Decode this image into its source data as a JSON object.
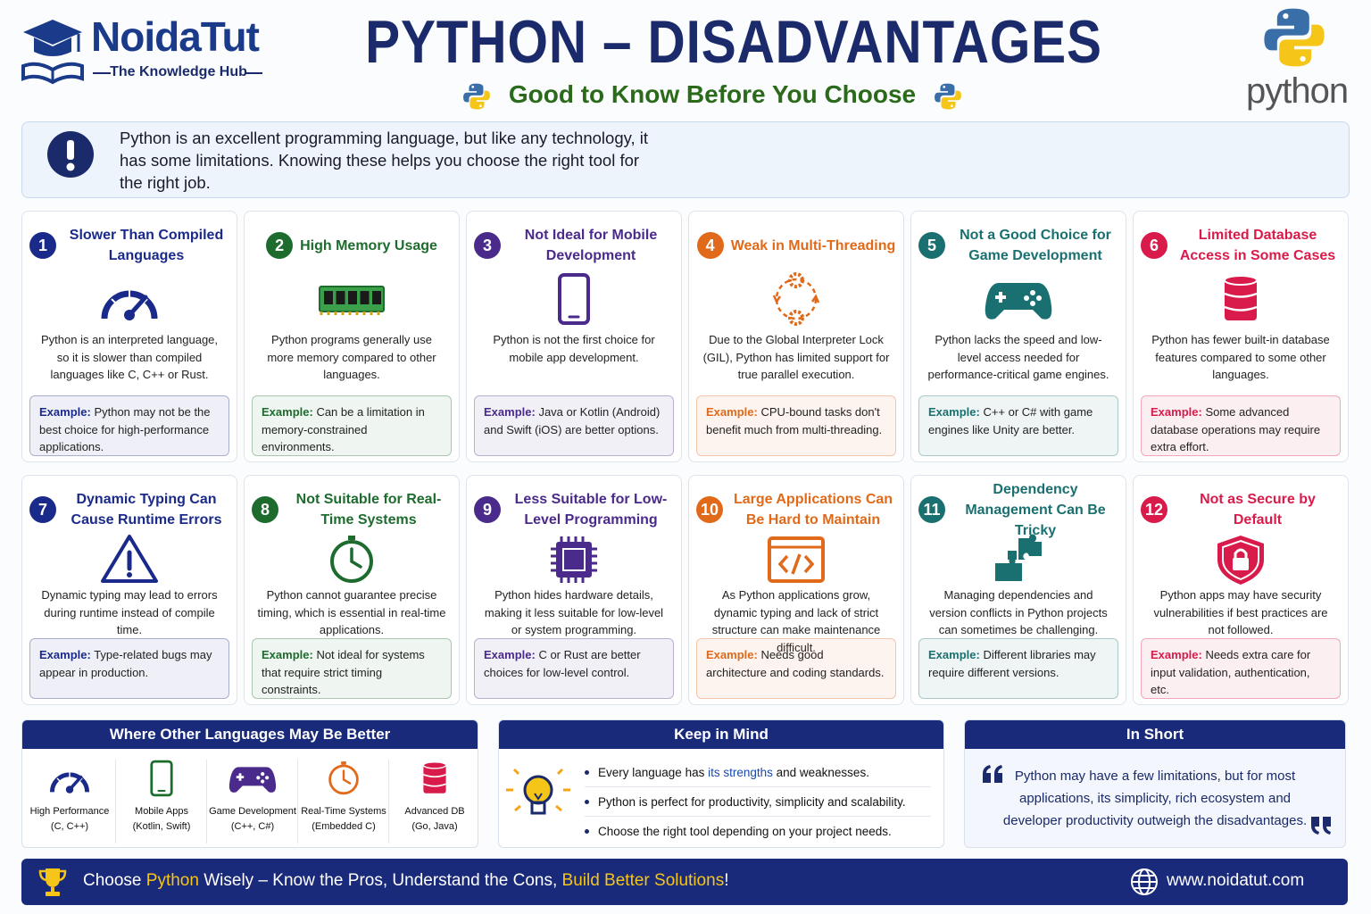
{
  "header": {
    "brand": "NoidaTut",
    "tagline": "The Knowledge Hub",
    "title": "PYTHON – DISADVANTAGES",
    "subtitle": "Good to Know Before You Choose",
    "logo_text": "python"
  },
  "intro": "Python is an excellent programming language, but like any technology, it has some limitations. Knowing these helps you choose the right tool for the right job.",
  "example_label": "Example:",
  "cards": [
    {
      "number": 1,
      "title": "Slower Than Compiled Languages",
      "description": "Python is an interpreted language, so it is slower than compiled languages like C, C++ or Rust.",
      "example": "Python may not be the best choice for high-performance applications."
    },
    {
      "number": 2,
      "title": "High Memory Usage",
      "description": "Python programs generally use more memory compared to other languages.",
      "example": "Can be a limitation in memory-constrained environments."
    },
    {
      "number": 3,
      "title": "Not Ideal for Mobile Development",
      "description": "Python is not the first choice for mobile app development.",
      "example": "Java or Kotlin (Android) and Swift (iOS) are better options."
    },
    {
      "number": 4,
      "title": "Weak in Multi-Threading",
      "description": "Due to the Global Interpreter Lock (GIL), Python has limited support for true parallel execution.",
      "example": "CPU-bound tasks don't benefit much from multi-threading."
    },
    {
      "number": 5,
      "title": "Not a Good Choice for Game Development",
      "description": "Python lacks the speed and low-level access needed for performance-critical game engines.",
      "example": "C++ or C# with game engines like Unity are better."
    },
    {
      "number": 6,
      "title": "Limited Database Access in Some Cases",
      "description": "Python has fewer built-in database features compared to some other languages.",
      "example": "Some advanced database operations may require extra effort."
    },
    {
      "number": 7,
      "title": "Dynamic Typing Can Cause Runtime Errors",
      "description": "Dynamic typing may lead to errors during runtime instead of compile time.",
      "example": "Type-related bugs may appear in production."
    },
    {
      "number": 8,
      "title": "Not Suitable for Real-Time Systems",
      "description": "Python cannot guarantee precise timing, which is essential in real-time applications.",
      "example": "Not ideal for systems that require strict timing constraints."
    },
    {
      "number": 9,
      "title": "Less Suitable for Low-Level Programming",
      "description": "Python hides hardware details, making it less suitable for low-level or system programming.",
      "example": "C or Rust are better choices for low-level control."
    },
    {
      "number": 10,
      "title": "Large Applications Can Be Hard to Maintain",
      "description": "As Python applications grow, dynamic typing and lack of strict structure can make maintenance difficult.",
      "example": "Needs good architecture and coding standards."
    },
    {
      "number": 11,
      "title": "Dependency Management Can Be Tricky",
      "description": "Managing dependencies and version conflicts in Python projects can sometimes be challenging.",
      "example": "Different libraries may require different versions."
    },
    {
      "number": 12,
      "title": "Not as Secure by Default",
      "description": "Python apps may have security vulnerabilities if best practices are not followed.",
      "example": "Needs extra care for input validation, authentication, etc."
    }
  ],
  "better": {
    "title": "Where Other Languages May Be Better",
    "items": [
      {
        "name": "High Performance",
        "detail": "(C, C++)"
      },
      {
        "name": "Mobile Apps",
        "detail": "(Kotlin, Swift)"
      },
      {
        "name": "Game Development",
        "detail": "(C++, C#)"
      },
      {
        "name": "Real-Time Systems",
        "detail": "(Embedded C)"
      },
      {
        "name": "Advanced DB",
        "detail": "(Go, Java)"
      }
    ]
  },
  "keep": {
    "title": "Keep in Mind",
    "items": [
      [
        "Every language has ",
        "its strengths",
        " and weaknesses."
      ],
      [
        "Python is perfect for productivity, simplicity and scalability."
      ],
      [
        "Choose the right tool depending on your project needs."
      ]
    ]
  },
  "short": {
    "title": "In Short",
    "quote": "Python may have a few limitations, but for most applications, its simplicity, rich ecosystem and developer productivity outweigh the disadvantages."
  },
  "footer": {
    "message": [
      "Choose ",
      "Python",
      " Wisely – Know the Pros, Understand the Cons, ",
      "Build Better Solutions",
      "!"
    ],
    "website": "www.noidatut.com"
  }
}
